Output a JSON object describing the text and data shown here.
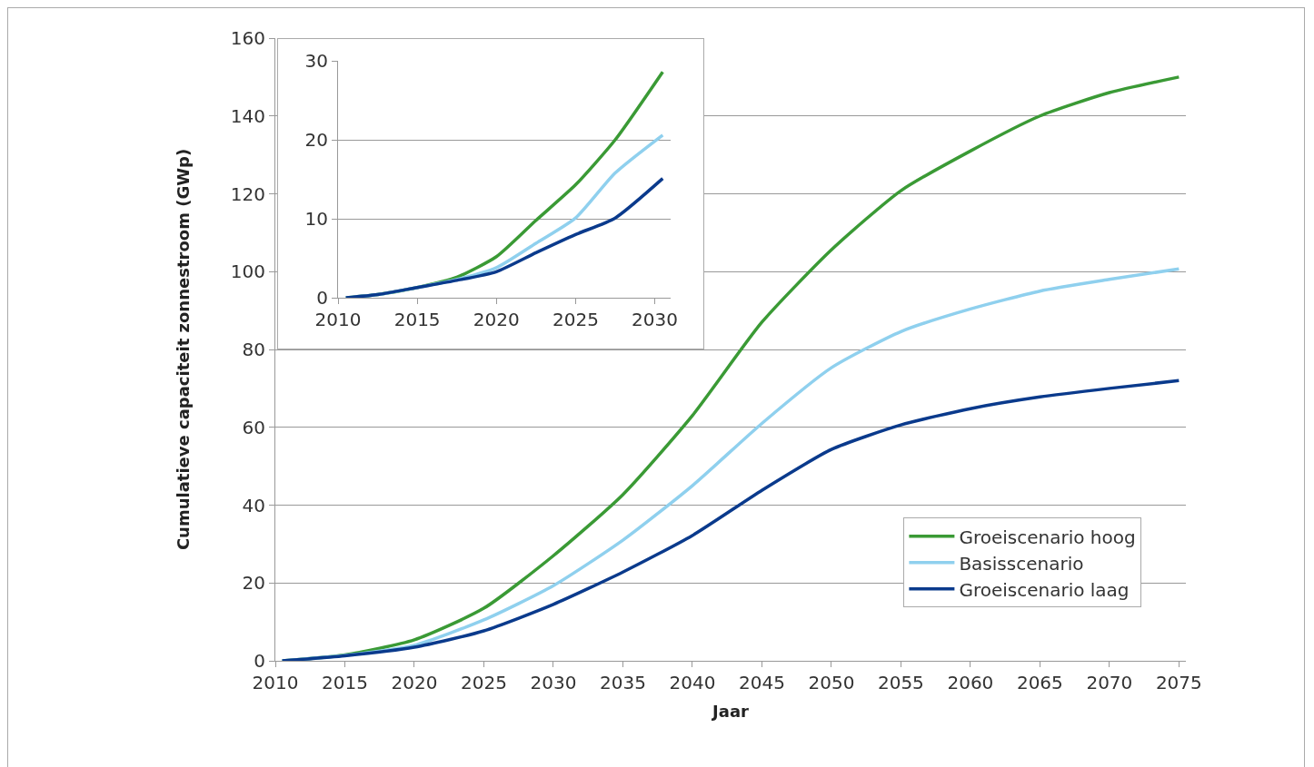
{
  "chart_data": [
    {
      "type": "line",
      "xlabel": "Jaar",
      "ylabel": "Cumulatieve capaciteit zonnestroom (GWp)",
      "xlim": [
        2010,
        2075.5
      ],
      "xticks": [
        2010,
        2015,
        2020,
        2025,
        2030,
        2035,
        2040,
        2045,
        2050,
        2055,
        2060,
        2065,
        2070,
        2075
      ],
      "ylim": [
        0,
        160
      ],
      "yticks": [
        0,
        20,
        40,
        60,
        80,
        100,
        120,
        140,
        160
      ],
      "grid": "y",
      "legend": "bottom right",
      "marker": "none",
      "line_style": "solid",
      "x": [
        2010.5,
        2015,
        2020,
        2025,
        2030,
        2035,
        2040,
        2045,
        2050,
        2055,
        2060,
        2065,
        2070,
        2075
      ],
      "series": [
        {
          "name": "Groeiscenario hoog",
          "color": "#3a9a35",
          "values": [
            0,
            1.5,
            5.4,
            13.5,
            27,
            42.7,
            63,
            87,
            105.6,
            120.8,
            131,
            140,
            146,
            150
          ]
        },
        {
          "name": "Basisscenario",
          "color": "#8fd0ee",
          "values": [
            0,
            1.4,
            4,
            10.5,
            19.3,
            31,
            45,
            61,
            75.3,
            84.6,
            90.4,
            95,
            98,
            100.7
          ]
        },
        {
          "name": "Groeiscenario laag",
          "color": "#0a3a8c",
          "values": [
            0,
            1.3,
            3.5,
            7.7,
            14.5,
            22.8,
            32.2,
            43.8,
            54.3,
            60.6,
            64.8,
            67.8,
            70,
            72
          ]
        }
      ]
    },
    {
      "type": "line",
      "xlim": [
        2010,
        2031
      ],
      "xticks": [
        2010,
        2015,
        2020,
        2025,
        2030
      ],
      "ylim": [
        0,
        30
      ],
      "yticks": [
        0,
        10,
        20,
        30
      ],
      "grid": "y",
      "legend": false,
      "marker": "none",
      "line_style": "solid",
      "x": [
        2010.5,
        2012.5,
        2015,
        2017.5,
        2020,
        2022.5,
        2025,
        2027.5,
        2030.5
      ],
      "series": [
        {
          "color": "#3a9a35",
          "values": [
            0,
            0.4,
            1.3,
            2.6,
            5.2,
            9.8,
            14.3,
            20,
            28.6
          ]
        },
        {
          "color": "#8fd0ee",
          "values": [
            0,
            0.4,
            1.3,
            2.3,
            3.8,
            6.9,
            10.1,
            15.8,
            20.6
          ]
        },
        {
          "color": "#0a3a8c",
          "values": [
            0,
            0.4,
            1.3,
            2.2,
            3.3,
            5.7,
            8,
            10.1,
            15.1
          ]
        }
      ]
    }
  ]
}
